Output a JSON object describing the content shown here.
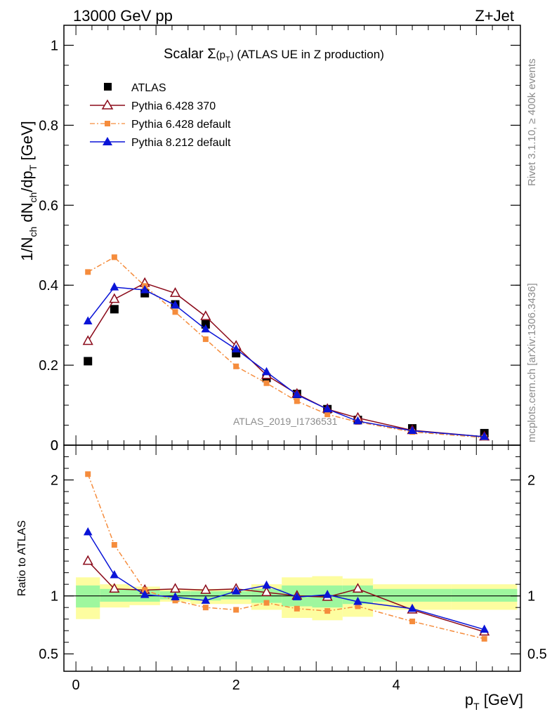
{
  "header": {
    "energy_label": "13000 GeV pp",
    "process_label": "Z+Jet"
  },
  "plot": {
    "title_main": "Scalar ",
    "title_sigma": "Σ",
    "title_arg": "(p",
    "title_sub": "T",
    "title_close": ")",
    "title_suffix": " (ATLAS UE in Z production)",
    "watermark": "ATLAS_2019_I1736531",
    "side_label_top": "Rivet 3.1.10, ≥ 400k events",
    "side_label_bottom": "mcplots.cern.ch [arXiv:1306.3436]",
    "ylabel_top": {
      "p1": "1/N",
      "s1": "ch",
      "p2": " dN",
      "s2": "ch",
      "p3": "/dp",
      "s3": "T",
      "p4": " [GeV]"
    },
    "ylabel_bottom": "Ratio to ATLAS",
    "xlabel": {
      "p": "p",
      "sub": "T",
      "unit": " [GeV]"
    },
    "colors": {
      "atlas": "#000000",
      "p6_370": "#8b0a1a",
      "p6_default": "#f58c3c",
      "p8": "#0a14d7",
      "band_inner": "#9ef79e",
      "band_outer": "#fdfda0"
    }
  },
  "chart_data": [
    {
      "type": "line",
      "panel": "main",
      "title": "Scalar Σ(pT) (ATLAS UE in Z production)",
      "xlabel": "pT [GeV]",
      "ylabel": "1/Nch dNch/dpT [GeV]",
      "xlim": [
        -0.15,
        5.55
      ],
      "ylim": [
        0,
        1.05
      ],
      "x_ticks": [
        0,
        2,
        4
      ],
      "y_ticks": [
        0,
        0.2,
        0.4,
        0.6,
        0.8,
        1
      ],
      "y_tick_labels": [
        "0",
        "0.2",
        "0.4",
        "0.6",
        "0.8",
        "1"
      ],
      "legend_position": "top-left",
      "series": [
        {
          "name": "ATLAS",
          "style": "square-marker",
          "x": [
            0.15,
            0.48,
            0.86,
            1.24,
            1.62,
            2.0,
            2.38,
            2.76,
            3.14,
            3.52,
            4.2,
            5.1
          ],
          "y": [
            0.21,
            0.34,
            0.38,
            0.352,
            0.302,
            0.23,
            0.168,
            0.128,
            0.09,
            0.063,
            0.042,
            0.03
          ]
        },
        {
          "name": "Pythia 6.428 370",
          "style": "open-triangle-solid-line",
          "x": [
            0.15,
            0.48,
            0.86,
            1.24,
            1.62,
            2.0,
            2.38,
            2.76,
            3.14,
            3.52,
            4.2,
            5.1
          ],
          "y": [
            0.26,
            0.365,
            0.405,
            0.38,
            0.322,
            0.248,
            0.175,
            0.128,
            0.09,
            0.068,
            0.037,
            0.021
          ]
        },
        {
          "name": "Pythia 6.428 default",
          "style": "small-square-dashdot-line",
          "x": [
            0.15,
            0.48,
            0.86,
            1.24,
            1.62,
            2.0,
            2.38,
            2.76,
            3.14,
            3.52,
            4.2,
            5.1
          ],
          "y": [
            0.433,
            0.47,
            0.398,
            0.333,
            0.265,
            0.197,
            0.155,
            0.11,
            0.077,
            0.058,
            0.033,
            0.019
          ]
        },
        {
          "name": "Pythia 8.212 default",
          "style": "filled-triangle-solid-line",
          "x": [
            0.15,
            0.48,
            0.86,
            1.24,
            1.62,
            2.0,
            2.38,
            2.76,
            3.14,
            3.52,
            4.2,
            5.1
          ],
          "y": [
            0.31,
            0.395,
            0.388,
            0.35,
            0.29,
            0.24,
            0.183,
            0.126,
            0.09,
            0.06,
            0.036,
            0.021
          ]
        }
      ]
    },
    {
      "type": "line",
      "panel": "ratio",
      "xlabel": "pT [GeV]",
      "ylabel": "Ratio to ATLAS",
      "xlim": [
        -0.15,
        5.55
      ],
      "ylim": [
        0.35,
        2.3
      ],
      "x_ticks": [
        0,
        2,
        4
      ],
      "x_tick_labels": [
        "0",
        "2",
        "4"
      ],
      "y_ticks": [
        0.5,
        1,
        2
      ],
      "y_tick_labels": [
        "0.5",
        "1",
        "2"
      ],
      "bands": {
        "edges": [
          0,
          0.3,
          0.67,
          1.05,
          1.43,
          1.81,
          2.19,
          2.57,
          2.95,
          3.33,
          3.71,
          4.69,
          5.51
        ],
        "inner_low": [
          0.9,
          0.95,
          0.95,
          0.97,
          0.96,
          0.97,
          0.94,
          0.91,
          0.9,
          0.93,
          0.95,
          0.95
        ],
        "inner_high": [
          1.09,
          1.06,
          1.05,
          1.04,
          1.04,
          1.04,
          1.06,
          1.09,
          1.09,
          1.09,
          1.06,
          1.06
        ],
        "outer_low": [
          0.8,
          0.9,
          0.92,
          0.95,
          0.93,
          0.93,
          0.88,
          0.81,
          0.79,
          0.82,
          0.88,
          0.88
        ],
        "outer_high": [
          1.16,
          1.1,
          1.08,
          1.06,
          1.06,
          1.06,
          1.1,
          1.16,
          1.17,
          1.15,
          1.1,
          1.1
        ]
      },
      "series": [
        {
          "name": "Pythia 6.428 370",
          "x": [
            0.15,
            0.48,
            0.86,
            1.24,
            1.62,
            2.0,
            2.38,
            2.76,
            3.14,
            3.52,
            4.2,
            5.1
          ],
          "y": [
            1.3,
            1.06,
            1.05,
            1.06,
            1.05,
            1.06,
            1.03,
            1.0,
            0.99,
            1.06,
            0.88,
            0.69
          ]
        },
        {
          "name": "Pythia 6.428 default",
          "x": [
            0.15,
            0.48,
            0.86,
            1.24,
            1.62,
            2.0,
            2.38,
            2.76,
            3.14,
            3.52,
            4.2,
            5.1
          ],
          "y": [
            2.05,
            1.44,
            1.05,
            0.96,
            0.9,
            0.88,
            0.94,
            0.89,
            0.87,
            0.91,
            0.78,
            0.63
          ]
        },
        {
          "name": "Pythia 8.212 default",
          "x": [
            0.15,
            0.48,
            0.86,
            1.24,
            1.62,
            2.0,
            2.38,
            2.76,
            3.14,
            3.52,
            4.2,
            5.1
          ],
          "y": [
            1.55,
            1.18,
            1.01,
            0.99,
            0.96,
            1.04,
            1.09,
            0.99,
            1.01,
            0.95,
            0.89,
            0.71
          ]
        }
      ]
    }
  ]
}
